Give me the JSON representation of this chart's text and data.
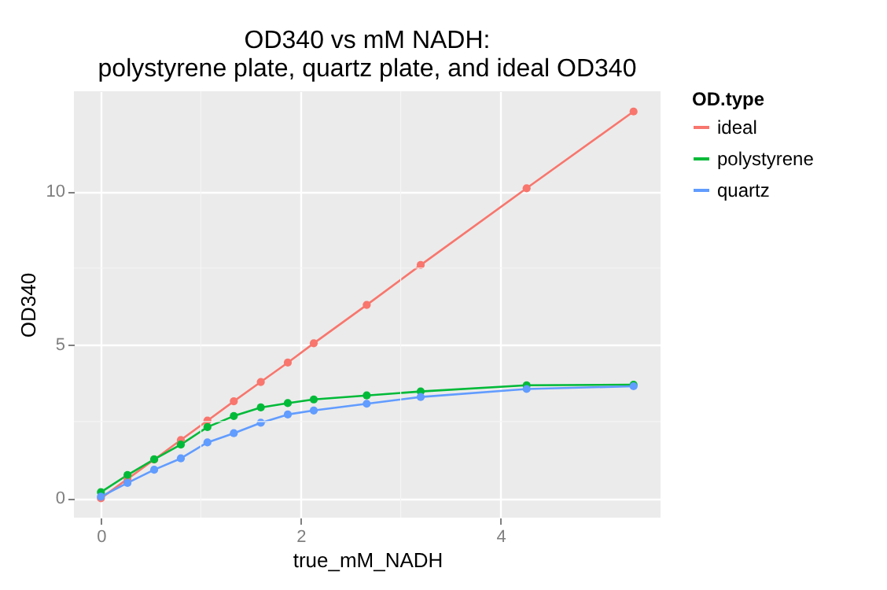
{
  "chart_data": {
    "type": "line",
    "title": "OD340 vs mM NADH:\npolystyrene plate, quartz plate, and ideal OD340",
    "xlabel": "true_mM_NADH",
    "ylabel": "OD340",
    "legend_title": "OD.type",
    "x": [
      0,
      0.266,
      0.533,
      0.8,
      1.066,
      1.33,
      1.6,
      1.87,
      2.13,
      2.66,
      3.2,
      4.26,
      5.33
    ],
    "series": [
      {
        "name": "ideal",
        "color": "#f8766d",
        "values": [
          0,
          0.63,
          1.26,
          1.9,
          2.53,
          3.16,
          3.79,
          4.42,
          5.05,
          6.3,
          7.6,
          10.1,
          12.6
        ]
      },
      {
        "name": "polystyrene",
        "color": "#00ba38",
        "values": [
          0.2,
          0.76,
          1.27,
          1.75,
          2.32,
          2.68,
          2.96,
          3.1,
          3.22,
          3.35,
          3.48,
          3.68,
          3.7
        ]
      },
      {
        "name": "quartz",
        "color": "#619cff",
        "values": [
          0.05,
          0.5,
          0.93,
          1.3,
          1.82,
          2.12,
          2.46,
          2.73,
          2.86,
          3.08,
          3.3,
          3.56,
          3.65
        ]
      }
    ],
    "xlim": [
      -0.27,
      5.6
    ],
    "ylim": [
      -0.63,
      13.26
    ],
    "xticks": [
      0,
      2,
      4
    ],
    "yticks": [
      0,
      5,
      10
    ],
    "grid": true,
    "legend": "right",
    "marker": "circle",
    "line_style": "solid"
  }
}
